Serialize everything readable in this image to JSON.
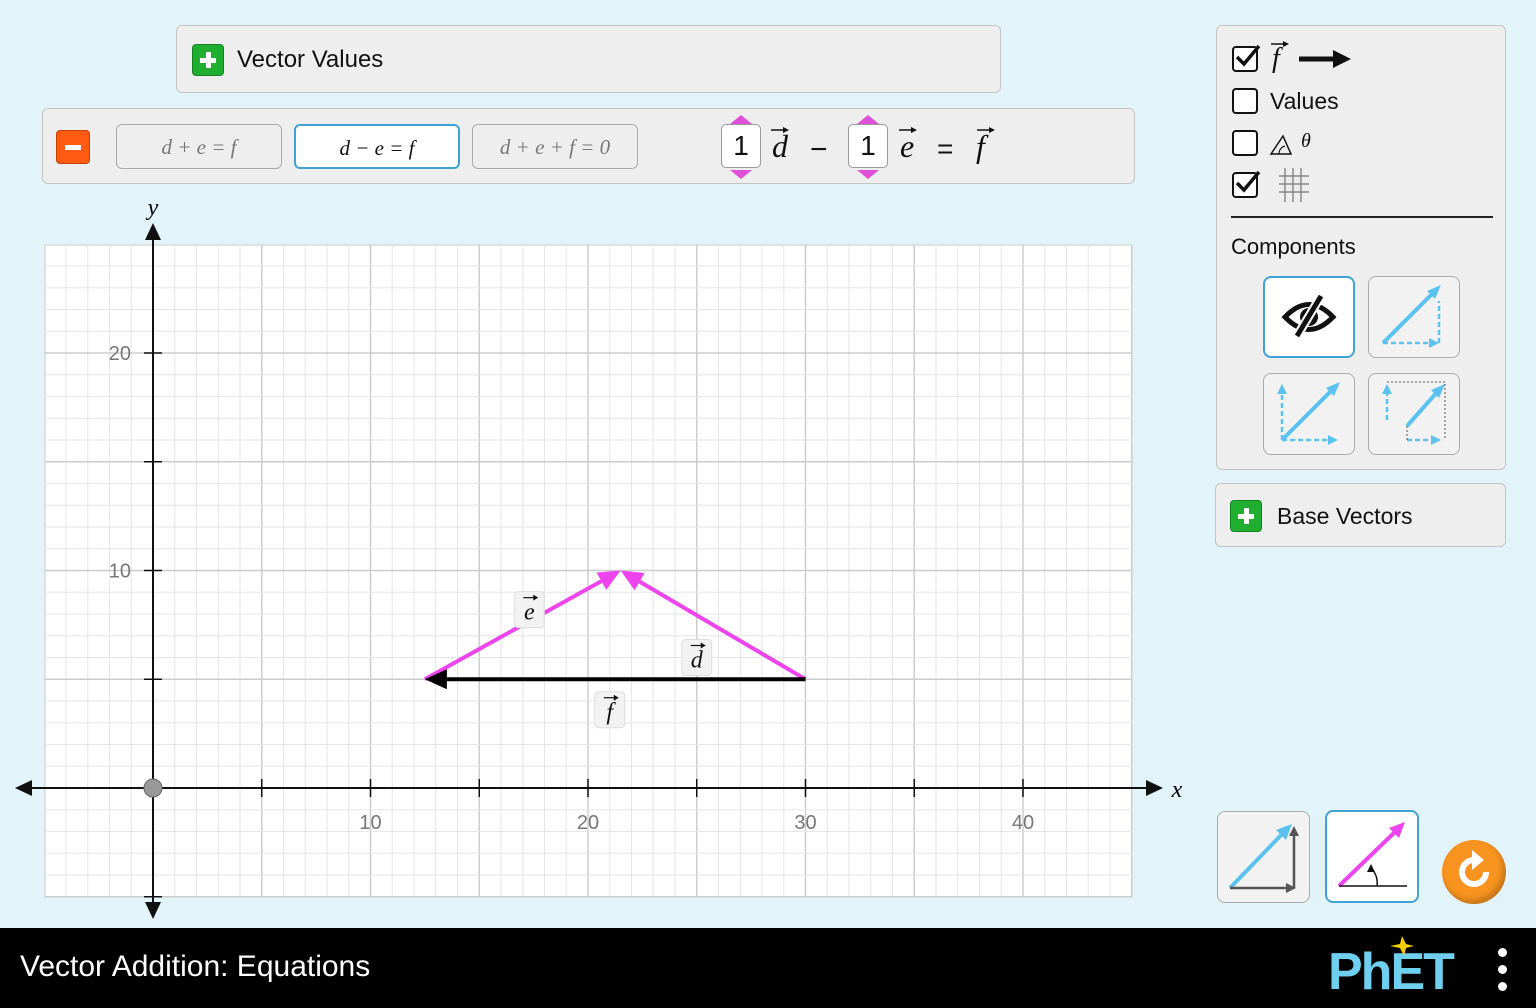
{
  "vector_values_panel": {
    "label": "Vector Values"
  },
  "equation_panel": {
    "options": [
      {
        "label": "d + e = f"
      },
      {
        "label": "d − e = f"
      },
      {
        "label": "d + e + f = 0"
      }
    ],
    "selected_index": 1,
    "coefficients": {
      "d": "1",
      "e": "1"
    },
    "symbols": {
      "d": "d",
      "e": "e",
      "f": "f",
      "minus": "−",
      "equals": "="
    }
  },
  "graph": {
    "x_axis_label": "x",
    "y_axis_label": "y",
    "x_ticks": [
      "10",
      "20",
      "30",
      "40"
    ],
    "y_ticks": [
      "10",
      "20"
    ],
    "vectors": [
      {
        "name": "e",
        "tail": [
          12.5,
          5
        ],
        "tip": [
          21.5,
          10
        ],
        "color": "#ee44ee"
      },
      {
        "name": "d",
        "tail": [
          30,
          5
        ],
        "tip": [
          21.5,
          10
        ],
        "color": "#ee44ee"
      },
      {
        "name": "f",
        "tail": [
          30,
          5
        ],
        "tip": [
          12.5,
          5
        ],
        "color": "#000000"
      }
    ],
    "vector_labels": {
      "e": "e",
      "d": "d",
      "f": "f"
    }
  },
  "options_panel": {
    "sum_checkbox": {
      "label": "f",
      "checked": true
    },
    "values_checkbox": {
      "label": "Values",
      "checked": false
    },
    "angle_checkbox": {
      "label": "θ",
      "checked": false
    },
    "grid_checkbox": {
      "checked": true
    },
    "components_label": "Components",
    "component_buttons": [
      "eye-slash",
      "triangle",
      "parallelogram",
      "on-axis"
    ],
    "selected_component": "eye-slash"
  },
  "base_vectors_panel": {
    "label": "Base Vectors"
  },
  "coordinate_mode": {
    "options": [
      "cartesian",
      "polar"
    ],
    "selected": "polar"
  },
  "footer": {
    "title": "Vector Addition: Equations",
    "brand": "PhET"
  },
  "colors": {
    "background": "#e2f3fa",
    "vector": "#ee44ee",
    "component": "#5bc2f0",
    "accent_blue": "#3ea3d4",
    "reset": "#f7931e"
  }
}
